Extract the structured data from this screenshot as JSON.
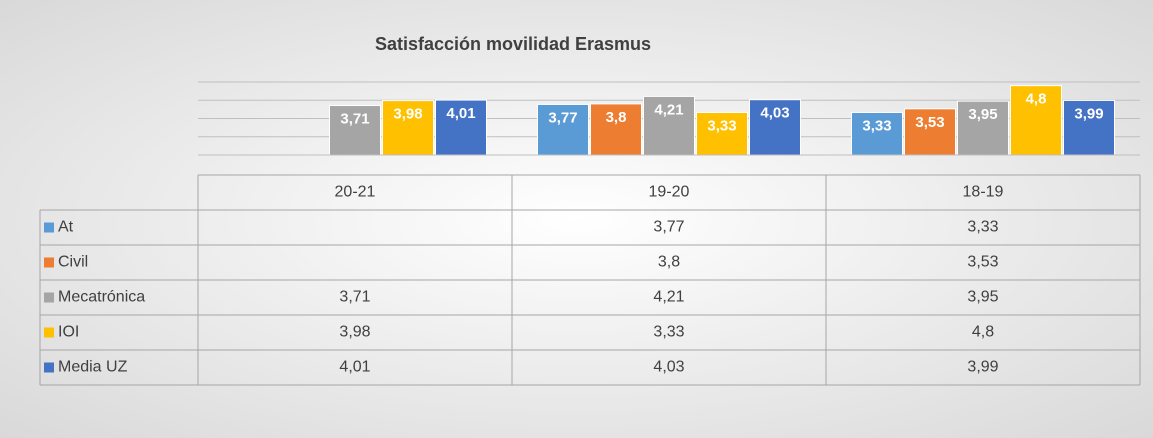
{
  "chart_data": {
    "type": "bar",
    "title": "Satisfacción movilidad Erasmus",
    "categories": [
      "20-21",
      "19-20",
      "18-19"
    ],
    "series": [
      {
        "name": "At",
        "color": "#5b9bd5",
        "values": [
          null,
          3.77,
          3.33
        ],
        "value_labels": [
          null,
          "3,77",
          "3,33"
        ]
      },
      {
        "name": "Civil",
        "color": "#ed7d31",
        "values": [
          null,
          3.8,
          3.53
        ],
        "value_labels": [
          null,
          "3,8",
          "3,53"
        ]
      },
      {
        "name": "Mecatrónica",
        "color": "#a5a5a5",
        "values": [
          3.71,
          4.21,
          3.95
        ],
        "value_labels": [
          "3,71",
          "4,21",
          "3,95"
        ]
      },
      {
        "name": "IOI",
        "color": "#ffc000",
        "values": [
          3.98,
          3.33,
          4.8
        ],
        "value_labels": [
          "3,98",
          "3,33",
          "4,8"
        ]
      },
      {
        "name": "Media UZ",
        "color": "#4472c4",
        "values": [
          4.01,
          4.03,
          3.99
        ],
        "value_labels": [
          "4,01",
          "4,03",
          "3,99"
        ]
      }
    ],
    "ylim": [
      1,
      5
    ],
    "yticks": [
      1,
      2,
      3,
      4,
      5
    ],
    "ytick_labels": false,
    "grid": true,
    "data_table": true
  }
}
